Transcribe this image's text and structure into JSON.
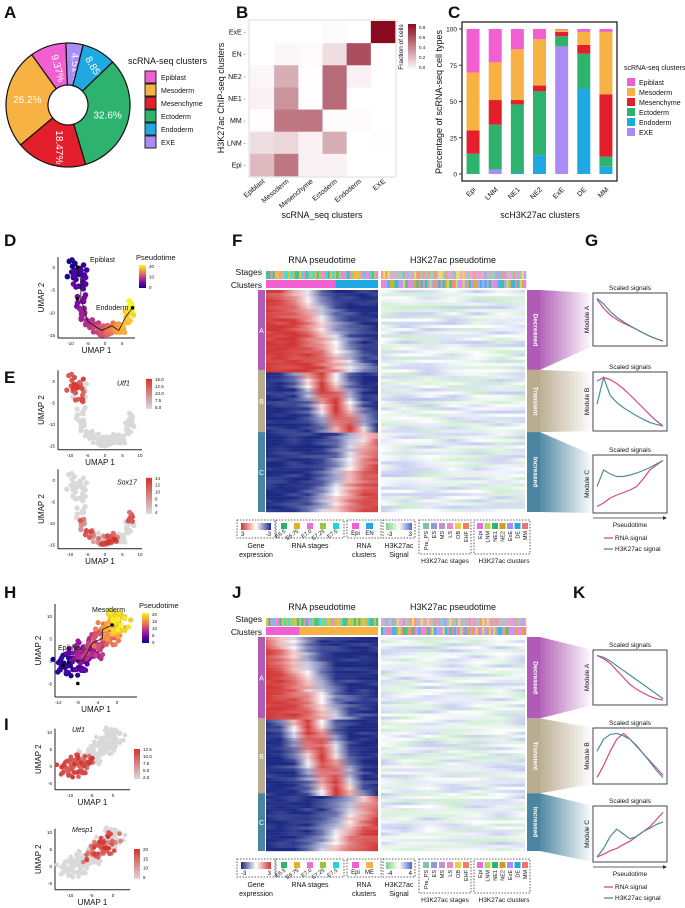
{
  "panel_labels": [
    "A",
    "B",
    "C",
    "D",
    "E",
    "F",
    "G",
    "H",
    "I",
    "J",
    "K"
  ],
  "colors": {
    "Epiblast": "#f25fd2",
    "Mesoderm": "#f8b143",
    "Mesenchyme": "#e21f2b",
    "Ectoderm": "#2eb36e",
    "Endoderm": "#1fa8e1",
    "EXE": "#a98cf6",
    "heat_high": "#8a0b20",
    "expr_high": "#d6322d",
    "expr_low": "#d9d9d9",
    "gene_red": "#d13434",
    "gene_blue": "#1d2a82",
    "h3_green": "#7ed08a",
    "h3_blue": "#4e66cf",
    "module_A": "#b05bb5",
    "module_B": "#b9ac8f",
    "module_C": "#4a849f",
    "rna_signal": "#d6478c",
    "h3k27ac_signal": "#4f8e96"
  },
  "chart_data": [
    {
      "panel": "A",
      "type": "pie",
      "legend_title": "scRNA-seq clusters",
      "legend": [
        "Epiblast",
        "Mesoderm",
        "Mesenchyme",
        "Ectoderm",
        "Endoderm",
        "EXE"
      ],
      "slices": [
        {
          "name": "EXE",
          "value": 4.51,
          "label": "4.51%"
        },
        {
          "name": "Endoderm",
          "value": 8.85,
          "label": "8.85%"
        },
        {
          "name": "Ectoderm",
          "value": 32.6,
          "label": "32.6%"
        },
        {
          "name": "Mesenchyme",
          "value": 18.47,
          "label": "18.47%"
        },
        {
          "name": "Mesoderm",
          "value": 26.2,
          "label": "26.2%"
        },
        {
          "name": "Epiblast",
          "value": 9.37,
          "label": "9.37%"
        }
      ]
    },
    {
      "panel": "B",
      "type": "heatmap",
      "xlabel": "scRNA_seq clusters",
      "ylabel": "H3K27ac ChIP-seq clusters",
      "x": [
        "Epiblast",
        "Mesoderm",
        "Mesenchyme",
        "Ectoderm",
        "Endoderm",
        "EXE"
      ],
      "y": [
        "ExE",
        "EN",
        "NE2",
        "NE1",
        "MM",
        "LNM",
        "Epi"
      ],
      "values": [
        [
          0.0,
          0.0,
          0.0,
          0.02,
          0.0,
          0.9
        ],
        [
          0.0,
          0.03,
          0.02,
          0.12,
          0.65,
          0.0
        ],
        [
          0.03,
          0.3,
          0.01,
          0.55,
          0.05,
          0.0
        ],
        [
          0.05,
          0.4,
          0.01,
          0.55,
          0.0,
          0.0
        ],
        [
          0.01,
          0.5,
          0.5,
          0.02,
          0.02,
          0.0
        ],
        [
          0.12,
          0.15,
          0.05,
          0.3,
          0.0,
          0.01
        ],
        [
          0.25,
          0.5,
          0.05,
          0.05,
          0.0,
          0.0
        ]
      ],
      "colorbar_title": "Fraction of cells",
      "colorbar_ticks": [
        "0.8",
        "0.6",
        "0.4",
        "0.2",
        "0.0"
      ],
      "range": [
        0,
        0.9
      ]
    },
    {
      "panel": "C",
      "type": "bar",
      "stacked": true,
      "xlabel": "scH3K27ac clusters",
      "ylabel": "Percentage of scRNA-seq cell types",
      "categories": [
        "Epi",
        "LNM",
        "NE1",
        "NE2",
        "ExE",
        "DE",
        "MM"
      ],
      "yticks": [
        "0",
        "25",
        "50",
        "75",
        "100"
      ],
      "ylim": [
        0,
        100
      ],
      "legend_title": "scRNA-seq clusters",
      "legend_position": "right",
      "series": [
        {
          "name": "EXE",
          "values": [
            0,
            3,
            0,
            0,
            88,
            0,
            0
          ]
        },
        {
          "name": "Endoderm",
          "values": [
            0,
            0,
            1,
            13,
            0,
            59,
            5
          ]
        },
        {
          "name": "Ectoderm",
          "values": [
            14,
            31,
            47,
            44,
            7,
            24,
            7
          ]
        },
        {
          "name": "Mesenchyme",
          "values": [
            16,
            17,
            3,
            4,
            3,
            6,
            43
          ]
        },
        {
          "name": "Mesoderm",
          "values": [
            40,
            26,
            35,
            32,
            1.5,
            9,
            43
          ]
        },
        {
          "name": "Epiblast",
          "values": [
            30,
            23,
            14,
            7,
            0.5,
            2,
            2
          ]
        }
      ]
    }
  ],
  "umap": {
    "xlabel": "UMAP 1",
    "ylabel": "UMAP 2",
    "D": {
      "labels": [
        "Epiblast",
        "Endoderm"
      ],
      "legend_title": "Pseudotime",
      "legend_ticks": [
        "20",
        "10",
        "0"
      ],
      "xticks": [
        "-10",
        "-5",
        "0",
        "5"
      ],
      "yticks": [
        "0",
        "-5",
        "-10",
        "-15"
      ]
    },
    "E1": {
      "gene": "Utf1",
      "legend_ticks": [
        "15.0",
        "12.5",
        "10.0",
        "7.5",
        "5.0"
      ],
      "xticks": [
        "-10",
        "-5",
        "0",
        "5",
        "10"
      ],
      "yticks": [
        "0",
        "-5",
        "-10",
        "-15"
      ]
    },
    "E2": {
      "gene": "Sox17",
      "legend_ticks": [
        "14",
        "12",
        "10",
        "8",
        "6",
        "4"
      ],
      "xticks": [
        "-10",
        "-5",
        "0",
        "5",
        "10"
      ],
      "yticks": [
        "0",
        "-5",
        "-10",
        "-15"
      ]
    },
    "H": {
      "labels": [
        "Mesoderm",
        "Epiblast"
      ],
      "legend_title": "Pseudotime",
      "legend_ticks": [
        "20",
        "15",
        "10",
        "5",
        "0"
      ],
      "xticks": [
        "-12",
        "-8",
        "-4",
        "0"
      ],
      "yticks": [
        "10",
        "5",
        "0",
        "-5"
      ]
    },
    "I1": {
      "gene": "Utf1",
      "legend_ticks": [
        "12.5",
        "10.0",
        "7.5",
        "5.0",
        "2.5"
      ],
      "xticks": [
        "-10",
        "-5",
        "0"
      ],
      "yticks": [
        "10",
        "5",
        "0",
        "-5"
      ]
    },
    "I2": {
      "gene": "Mesp1",
      "legend_ticks": [
        "20",
        "15",
        "10",
        "5"
      ],
      "xticks": [
        "-10",
        "-5",
        "0"
      ],
      "yticks": [
        "10",
        "5",
        "0",
        "-5"
      ]
    }
  },
  "heatmaps": {
    "rna_title": "RNA pseudotime",
    "h3_title": "H3K27ac pseudotime",
    "row_labels": [
      "Stages",
      "Clusters"
    ],
    "modules": [
      "A",
      "B",
      "C"
    ],
    "module_trends": [
      "Decreased",
      "Transient",
      "Increased"
    ],
    "F": {
      "gene_expression": {
        "title": [
          "Gene",
          "expression"
        ],
        "ticks": [
          "3",
          "-3"
        ]
      },
      "rna_stages": {
        "title": "RNA stages",
        "items": [
          {
            "label": "E6.5",
            "color": "#2eb36e"
          },
          {
            "label": "E6.75",
            "color": "#e5b026"
          },
          {
            "label": "E7.0",
            "color": "#f06ed6"
          },
          {
            "label": "E7.25",
            "color": "#9cc43b"
          },
          {
            "label": "E7.5",
            "color": "#20d3e0"
          }
        ]
      },
      "rna_clusters": {
        "title": [
          "RNA",
          "clusters"
        ],
        "items": [
          {
            "label": "Epi",
            "color": "#f25fd2"
          },
          {
            "label": "EN",
            "color": "#1fa8e1"
          }
        ],
        "split": 0.62
      },
      "h3_signal": {
        "title": [
          "H3K27ac",
          "Signal"
        ],
        "ticks": [
          "-3",
          "3"
        ]
      }
    },
    "J": {
      "gene_expression": {
        "title": [
          "Gene",
          "expression"
        ],
        "ticks": [
          "-3",
          "3"
        ]
      },
      "rna_stages": {
        "title": "RNA stages",
        "items": [
          {
            "label": "E6.5",
            "color": "#2eb36e"
          },
          {
            "label": "E6.75",
            "color": "#e5b026"
          },
          {
            "label": "E7.0",
            "color": "#f06ed6"
          },
          {
            "label": "E7.25",
            "color": "#9cc43b"
          },
          {
            "label": "E7.5",
            "color": "#20d3e0"
          }
        ]
      },
      "rna_clusters": {
        "title": [
          "RNA",
          "clusters"
        ],
        "items": [
          {
            "label": "Epi",
            "color": "#f25fd2"
          },
          {
            "label": "ME",
            "color": "#f8b143"
          }
        ],
        "split": 0.3
      },
      "h3_signal": {
        "title": [
          "H3K27ac",
          "Signal"
        ],
        "ticks": [
          "-4",
          "4"
        ]
      }
    },
    "h3_stages": {
      "title": "H3K27ac stages",
      "items": [
        {
          "label": "Pre_PS",
          "color": "#7fc3a5"
        },
        {
          "label": "ES",
          "color": "#8f9bd1"
        },
        {
          "label": "MS",
          "color": "#c590d2"
        },
        {
          "label": "LS",
          "color": "#e68dc4"
        },
        {
          "label": "OB",
          "color": "#eccf42"
        },
        {
          "label": "EHF",
          "color": "#f28163"
        }
      ]
    },
    "h3_clusters": {
      "title": "H3K27ac clusters",
      "items": [
        {
          "label": "Epi",
          "color": "#e96fd8"
        },
        {
          "label": "LNM",
          "color": "#b7d65b"
        },
        {
          "label": "NE1",
          "color": "#2eb36e"
        },
        {
          "label": "NE2",
          "color": "#c9a021"
        },
        {
          "label": "ExE",
          "color": "#a98cf6"
        },
        {
          "label": "DE",
          "color": "#1fa8e1"
        },
        {
          "label": "MM",
          "color": "#f07272"
        }
      ]
    }
  },
  "signals": {
    "title": "Scaled signals",
    "xlabel": "Pseudotime",
    "legend": [
      "RNA signal",
      "H3K27ac signal"
    ],
    "x": [
      0,
      0.1,
      0.2,
      0.3,
      0.4,
      0.5,
      0.6,
      0.7,
      0.8,
      0.9,
      1.0
    ],
    "G": [
      {
        "module": "Module A",
        "rna": [
          0.95,
          0.75,
          0.6,
          0.5,
          0.42,
          0.35,
          0.28,
          0.2,
          0.13,
          0.07,
          0.02
        ],
        "h3": [
          0.97,
          0.85,
          0.68,
          0.55,
          0.45,
          0.36,
          0.28,
          0.2,
          0.13,
          0.07,
          0.02
        ]
      },
      {
        "module": "Module B",
        "rna": [
          0.9,
          0.97,
          0.93,
          0.85,
          0.75,
          0.63,
          0.5,
          0.37,
          0.24,
          0.12,
          0.02
        ],
        "h3": [
          0.45,
          0.97,
          0.62,
          0.48,
          0.38,
          0.3,
          0.22,
          0.15,
          0.09,
          0.05,
          0.02
        ]
      },
      {
        "module": "Module C",
        "rna": [
          0.05,
          0.12,
          0.22,
          0.28,
          0.33,
          0.38,
          0.45,
          0.6,
          0.78,
          0.88,
          0.97
        ],
        "h3": [
          0.45,
          0.78,
          0.7,
          0.65,
          0.65,
          0.68,
          0.72,
          0.77,
          0.83,
          0.9,
          0.97
        ]
      }
    ],
    "K": [
      {
        "module": "Module A",
        "rna": [
          0.97,
          0.9,
          0.8,
          0.65,
          0.5,
          0.35,
          0.25,
          0.17,
          0.1,
          0.05,
          0.02
        ],
        "h3": [
          0.97,
          0.93,
          0.85,
          0.75,
          0.65,
          0.55,
          0.45,
          0.35,
          0.25,
          0.15,
          0.05
        ]
      },
      {
        "module": "Module B",
        "rna": [
          0.05,
          0.3,
          0.6,
          0.85,
          0.97,
          0.85,
          0.7,
          0.55,
          0.4,
          0.25,
          0.1
        ],
        "h3": [
          0.6,
          0.85,
          0.95,
          0.97,
          0.92,
          0.85,
          0.72,
          0.55,
          0.38,
          0.2,
          0.05
        ]
      },
      {
        "module": "Module C",
        "rna": [
          0.02,
          0.08,
          0.15,
          0.2,
          0.28,
          0.35,
          0.45,
          0.55,
          0.65,
          0.8,
          0.95
        ],
        "h3": [
          0.02,
          0.2,
          0.45,
          0.6,
          0.5,
          0.4,
          0.45,
          0.55,
          0.62,
          0.7,
          0.75
        ]
      }
    ]
  }
}
